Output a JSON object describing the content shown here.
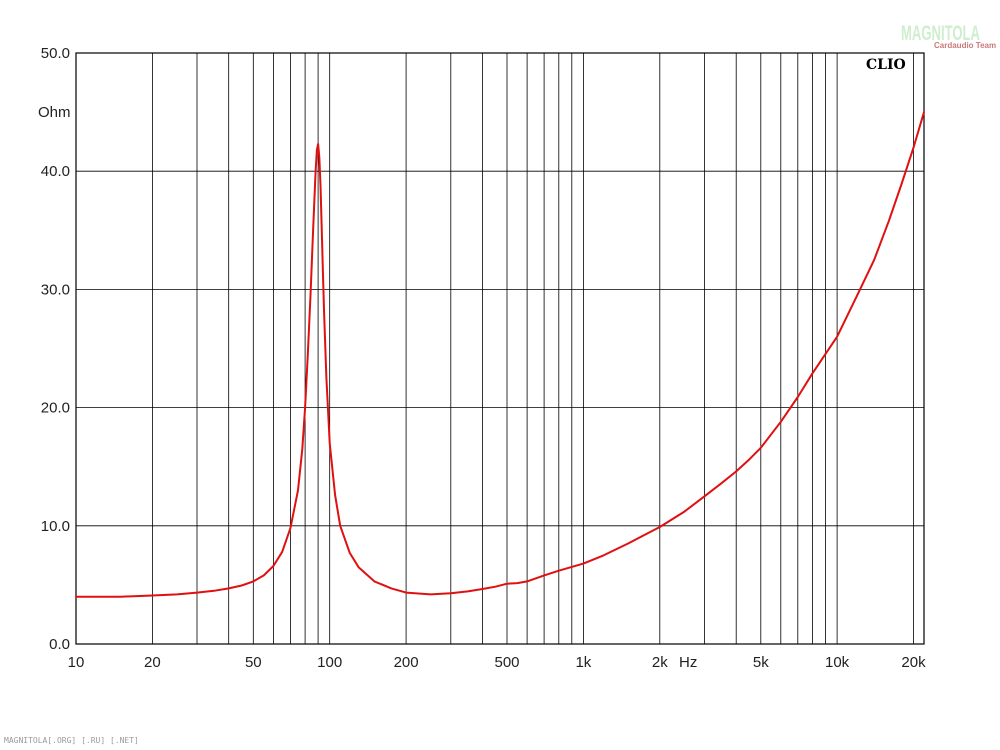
{
  "chart_data": {
    "type": "line",
    "x_scale": "log",
    "xlim": [
      10,
      22000
    ],
    "ylim": [
      0,
      50
    ],
    "y_unit": "Ohm",
    "x_unit": "Hz",
    "grid": true,
    "x_ticks": [
      {
        "value": 10,
        "label": "10"
      },
      {
        "value": 20,
        "label": "20"
      },
      {
        "value": 50,
        "label": "50"
      },
      {
        "value": 100,
        "label": "100"
      },
      {
        "value": 200,
        "label": "200"
      },
      {
        "value": 500,
        "label": "500"
      },
      {
        "value": 1000,
        "label": "1k"
      },
      {
        "value": 2000,
        "label": "2k"
      },
      {
        "value": 5000,
        "label": "5k"
      },
      {
        "value": 10000,
        "label": "10k"
      },
      {
        "value": 20000,
        "label": "20k"
      }
    ],
    "y_ticks": [
      {
        "value": 0,
        "label": "0.0"
      },
      {
        "value": 10,
        "label": "10.0"
      },
      {
        "value": 20,
        "label": "20.0"
      },
      {
        "value": 30,
        "label": "30.0"
      },
      {
        "value": 40,
        "label": "40.0"
      },
      {
        "value": 50,
        "label": "50.0"
      }
    ],
    "x_grid": [
      20,
      30,
      40,
      50,
      60,
      70,
      80,
      90,
      100,
      200,
      300,
      400,
      500,
      600,
      700,
      800,
      900,
      1000,
      2000,
      3000,
      4000,
      5000,
      6000,
      7000,
      8000,
      9000,
      10000,
      20000
    ],
    "y_grid": [
      10,
      20,
      30,
      40
    ],
    "series": [
      {
        "color": "#e01010",
        "x": [
          10,
          15,
          20,
          25,
          30,
          35,
          40,
          45,
          50,
          55,
          60,
          65,
          70,
          75,
          78,
          80,
          82,
          84,
          86,
          88,
          89,
          90,
          91,
          92,
          93,
          94,
          95,
          97,
          100,
          105,
          110,
          120,
          130,
          150,
          175,
          200,
          250,
          300,
          350,
          400,
          450,
          500,
          550,
          600,
          700,
          800,
          1000,
          1200,
          1500,
          2000,
          2500,
          3000,
          3500,
          4000,
          4500,
          5000,
          6000,
          7000,
          8000,
          10000,
          12000,
          14000,
          16000,
          18000,
          20000,
          22000
        ],
        "y": [
          4.0,
          4.0,
          4.1,
          4.2,
          4.35,
          4.5,
          4.7,
          4.95,
          5.3,
          5.8,
          6.6,
          7.8,
          9.8,
          13.0,
          16.5,
          20.0,
          24.5,
          29.5,
          35.0,
          40.0,
          41.8,
          42.3,
          41.2,
          38.8,
          35.2,
          31.5,
          28.0,
          22.5,
          17.0,
          12.6,
          10.0,
          7.7,
          6.5,
          5.3,
          4.7,
          4.35,
          4.2,
          4.3,
          4.45,
          4.65,
          4.85,
          5.1,
          5.15,
          5.3,
          5.8,
          6.2,
          6.8,
          7.5,
          8.5,
          9.9,
          11.2,
          12.5,
          13.6,
          14.6,
          15.6,
          16.6,
          18.8,
          20.9,
          22.9,
          26.0,
          29.5,
          32.5,
          35.8,
          39.0,
          42.0,
          45.0
        ]
      }
    ]
  },
  "brand": "CLIO",
  "watermark": {
    "main": "MAGNITOLA",
    "sub": "Cardaudio Team"
  },
  "footer": "MAGNITOLA[.ORG] [.RU] [.NET]"
}
